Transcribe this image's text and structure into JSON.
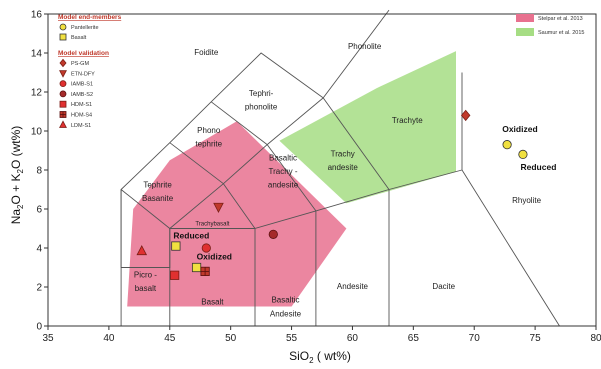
{
  "chart_data": {
    "type": "scatter",
    "xlabel_main": "SiO",
    "xlabel_sub": "2",
    "xlabel_unit": " ( wt%)",
    "ylabel_a": "Na",
    "ylabel_a_sub": "2",
    "ylabel_b": "O + K",
    "ylabel_b_sub": "2",
    "ylabel_c": "O  (wt%)",
    "xlim": [
      35,
      80
    ],
    "ylim": [
      0,
      16
    ],
    "xticks": [
      35,
      40,
      45,
      50,
      55,
      60,
      65,
      70,
      75,
      80
    ],
    "yticks": [
      0,
      2,
      4,
      6,
      8,
      10,
      12,
      14,
      16
    ],
    "field_boundaries": [
      [
        [
          41,
          0
        ],
        [
          41,
          7
        ],
        [
          45,
          9.4
        ],
        [
          48.4,
          11.5
        ],
        [
          52.5,
          14
        ],
        [
          57.6,
          11.7
        ],
        [
          63,
          16.2
        ]
      ],
      [
        [
          41,
          3
        ],
        [
          45,
          3
        ],
        [
          45,
          5
        ],
        [
          49.4,
          7.3
        ],
        [
          53,
          9.3
        ],
        [
          57.6,
          11.7
        ]
      ],
      [
        [
          45,
          0
        ],
        [
          45,
          5
        ]
      ],
      [
        [
          52,
          0
        ],
        [
          52,
          5
        ],
        [
          57,
          5.9
        ],
        [
          63,
          7
        ],
        [
          69,
          8
        ]
      ],
      [
        [
          57,
          0
        ],
        [
          57,
          5.9
        ]
      ],
      [
        [
          63,
          0
        ],
        [
          63,
          7
        ]
      ],
      [
        [
          77,
          0
        ],
        [
          69,
          8
        ],
        [
          69,
          13
        ]
      ],
      [
        [
          45,
          5
        ],
        [
          52,
          5
        ]
      ],
      [
        [
          49.4,
          7.3
        ],
        [
          52,
          5
        ]
      ],
      [
        [
          53,
          9.3
        ],
        [
          57,
          5.9
        ]
      ],
      [
        [
          57.6,
          11.7
        ],
        [
          63,
          7
        ]
      ],
      [
        [
          41,
          7
        ],
        [
          45,
          5
        ]
      ],
      [
        [
          45,
          9.4
        ],
        [
          49.4,
          7.3
        ]
      ],
      [
        [
          48.4,
          11.5
        ],
        [
          53,
          9.3
        ]
      ],
      [
        [
          41,
          3
        ],
        [
          41,
          7
        ]
      ]
    ],
    "regions": [
      {
        "name": "Stelpar et al. 2013",
        "color": "#e8718f",
        "points": [
          [
            41.5,
            1
          ],
          [
            55,
            1
          ],
          [
            59.5,
            5
          ],
          [
            50.5,
            10.5
          ],
          [
            45,
            8.5
          ],
          [
            42,
            6
          ],
          [
            41.5,
            1
          ]
        ]
      },
      {
        "name": "Saumur et al. 2015",
        "color": "#a6dd84",
        "points": [
          [
            54,
            9.5
          ],
          [
            62,
            12.2
          ],
          [
            68.5,
            14.1
          ],
          [
            68.5,
            7.9
          ],
          [
            59.5,
            6.3
          ],
          [
            54,
            9.5
          ]
        ]
      }
    ],
    "field_labels": [
      {
        "text": "Foidite",
        "x": 48,
        "y": 13.9,
        "size": "field"
      },
      {
        "text": "Phonolite",
        "x": 61,
        "y": 14.2,
        "size": "field"
      },
      {
        "text": "Tephri-",
        "x": 52.5,
        "y": 11.8,
        "size": "field"
      },
      {
        "text": "phonolite",
        "x": 52.5,
        "y": 11.1,
        "size": "field"
      },
      {
        "text": "Phono",
        "x": 48.2,
        "y": 9.9,
        "size": "field"
      },
      {
        "text": "tephrite",
        "x": 48.2,
        "y": 9.2,
        "size": "field"
      },
      {
        "text": "Trachyte",
        "x": 64.5,
        "y": 10.4,
        "size": "field"
      },
      {
        "text": "Trachy",
        "x": 59.2,
        "y": 8.7,
        "size": "field"
      },
      {
        "text": "andesite",
        "x": 59.2,
        "y": 8,
        "size": "field"
      },
      {
        "text": "Basaltic",
        "x": 54.3,
        "y": 8.5,
        "size": "field"
      },
      {
        "text": "Trachy -",
        "x": 54.3,
        "y": 7.8,
        "size": "field"
      },
      {
        "text": "andesite",
        "x": 54.3,
        "y": 7.1,
        "size": "field"
      },
      {
        "text": "Tephrite",
        "x": 44,
        "y": 7.1,
        "size": "field"
      },
      {
        "text": "Basanite",
        "x": 44,
        "y": 6.4,
        "size": "field"
      },
      {
        "text": "Trachybasalt",
        "x": 48.5,
        "y": 5.15,
        "size": "field-small"
      },
      {
        "text": "Picro -",
        "x": 43,
        "y": 2.5,
        "size": "field"
      },
      {
        "text": "basalt",
        "x": 43,
        "y": 1.8,
        "size": "field"
      },
      {
        "text": "Basalt",
        "x": 48.5,
        "y": 1.1,
        "size": "field"
      },
      {
        "text": "Basaltic",
        "x": 54.5,
        "y": 1.2,
        "size": "field"
      },
      {
        "text": "Andesite",
        "x": 54.5,
        "y": 0.5,
        "size": "field"
      },
      {
        "text": "Andesite",
        "x": 60,
        "y": 1.9,
        "size": "field"
      },
      {
        "text": "Dacite",
        "x": 67.5,
        "y": 1.9,
        "size": "field"
      },
      {
        "text": "Rhyolite",
        "x": 74.3,
        "y": 6.3,
        "size": "field"
      }
    ],
    "series": [
      {
        "name": "Pantellerite",
        "marker": "circle",
        "color": "#f0e040",
        "stroke": "#333",
        "points": [
          [
            72.7,
            9.3
          ],
          [
            74,
            8.8
          ]
        ]
      },
      {
        "name": "Basalt",
        "marker": "square",
        "color": "#f0e040",
        "stroke": "#333",
        "points": [
          [
            45.5,
            4.1
          ],
          [
            47.2,
            3
          ]
        ]
      },
      {
        "name": "PS-GM",
        "marker": "diamond",
        "color": "#c0392b",
        "stroke": "#7a1f17",
        "points": [
          [
            69.3,
            10.8
          ]
        ]
      },
      {
        "name": "ETN-DFY",
        "marker": "triangle-down",
        "color": "#c0392b",
        "stroke": "#7a1f17",
        "points": [
          [
            49,
            6.1
          ]
        ]
      },
      {
        "name": "IAMB-S1",
        "marker": "circle",
        "color": "#e03030",
        "stroke": "#7a1f17",
        "points": [
          [
            48,
            4
          ]
        ]
      },
      {
        "name": "IAMB-S2",
        "marker": "circle",
        "color": "#a52a2a",
        "stroke": "#5a1010",
        "points": [
          [
            53.5,
            4.7
          ]
        ]
      },
      {
        "name": "HDM-S1",
        "marker": "square",
        "color": "#e03030",
        "stroke": "#7a1f17",
        "points": [
          [
            45.4,
            2.6
          ]
        ]
      },
      {
        "name": "HDM-S4",
        "marker": "square-cross",
        "color": "#c0392b",
        "stroke": "#5a1010",
        "points": [
          [
            47.9,
            2.8
          ]
        ]
      },
      {
        "name": "LDM-S1",
        "marker": "triangle",
        "color": "#e03030",
        "stroke": "#7a1f17",
        "points": [
          [
            42.7,
            3.85
          ]
        ]
      }
    ],
    "legend": {
      "end_title": "Model end-members",
      "validation_title": "Model validation",
      "end_items": [
        "Pantellerite",
        "Basalt"
      ],
      "validation_items": [
        "PS-GM",
        "ETN-DFY",
        "IAMB-S1",
        "IAMB-S2",
        "HDM-S1",
        "HDM-S4",
        "LDM-S1"
      ],
      "region_items": [
        "Stelpar et al. 2013",
        "Saumur et al. 2015"
      ]
    },
    "annotations": [
      {
        "text": "Oxidized",
        "x": 72.3,
        "y": 9.95
      },
      {
        "text": "Reduced",
        "x": 73.8,
        "y": 8
      },
      {
        "text": "Reduced",
        "x": 45.3,
        "y": 4.5
      },
      {
        "text": "Oxidized",
        "x": 47.2,
        "y": 3.4
      }
    ]
  }
}
